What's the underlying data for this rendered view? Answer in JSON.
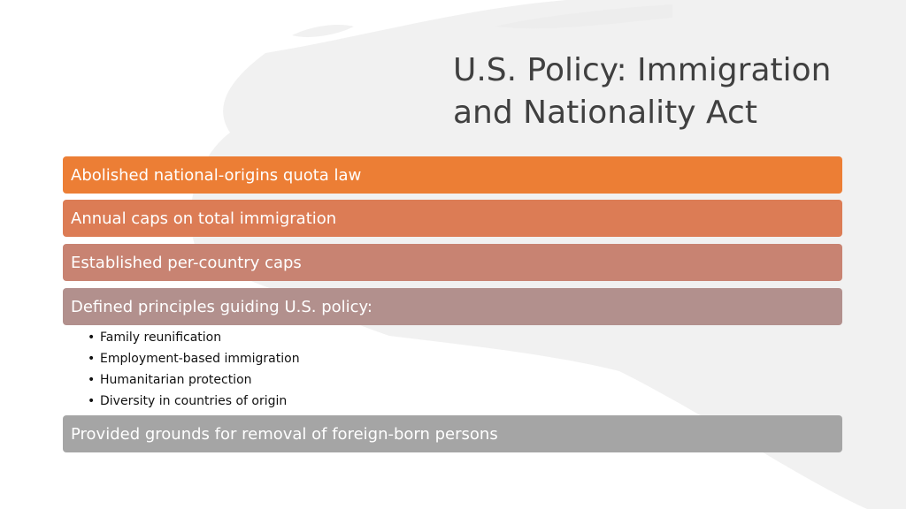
{
  "title": {
    "line1": "U.S. Policy: Immigration",
    "line2": "and Nationality Act"
  },
  "items": [
    {
      "label": "Abolished national-origins quota law"
    },
    {
      "label": "Annual caps on total immigration"
    },
    {
      "label": "Established per-country caps"
    },
    {
      "label": "Defined principles guiding U.S. policy:",
      "subitems": [
        "Family reunification",
        "Employment-based immigration",
        "Humanitarian protection",
        "Diversity in countries of origin"
      ]
    },
    {
      "label": "Provided grounds for removal of foreign-born persons"
    }
  ],
  "colors": {
    "bar1": "#ec7e35",
    "bar2": "#dc7c55",
    "bar3": "#c88372",
    "bar4": "#b2908d",
    "bar5": "#a5a5a5",
    "title": "#404040"
  }
}
